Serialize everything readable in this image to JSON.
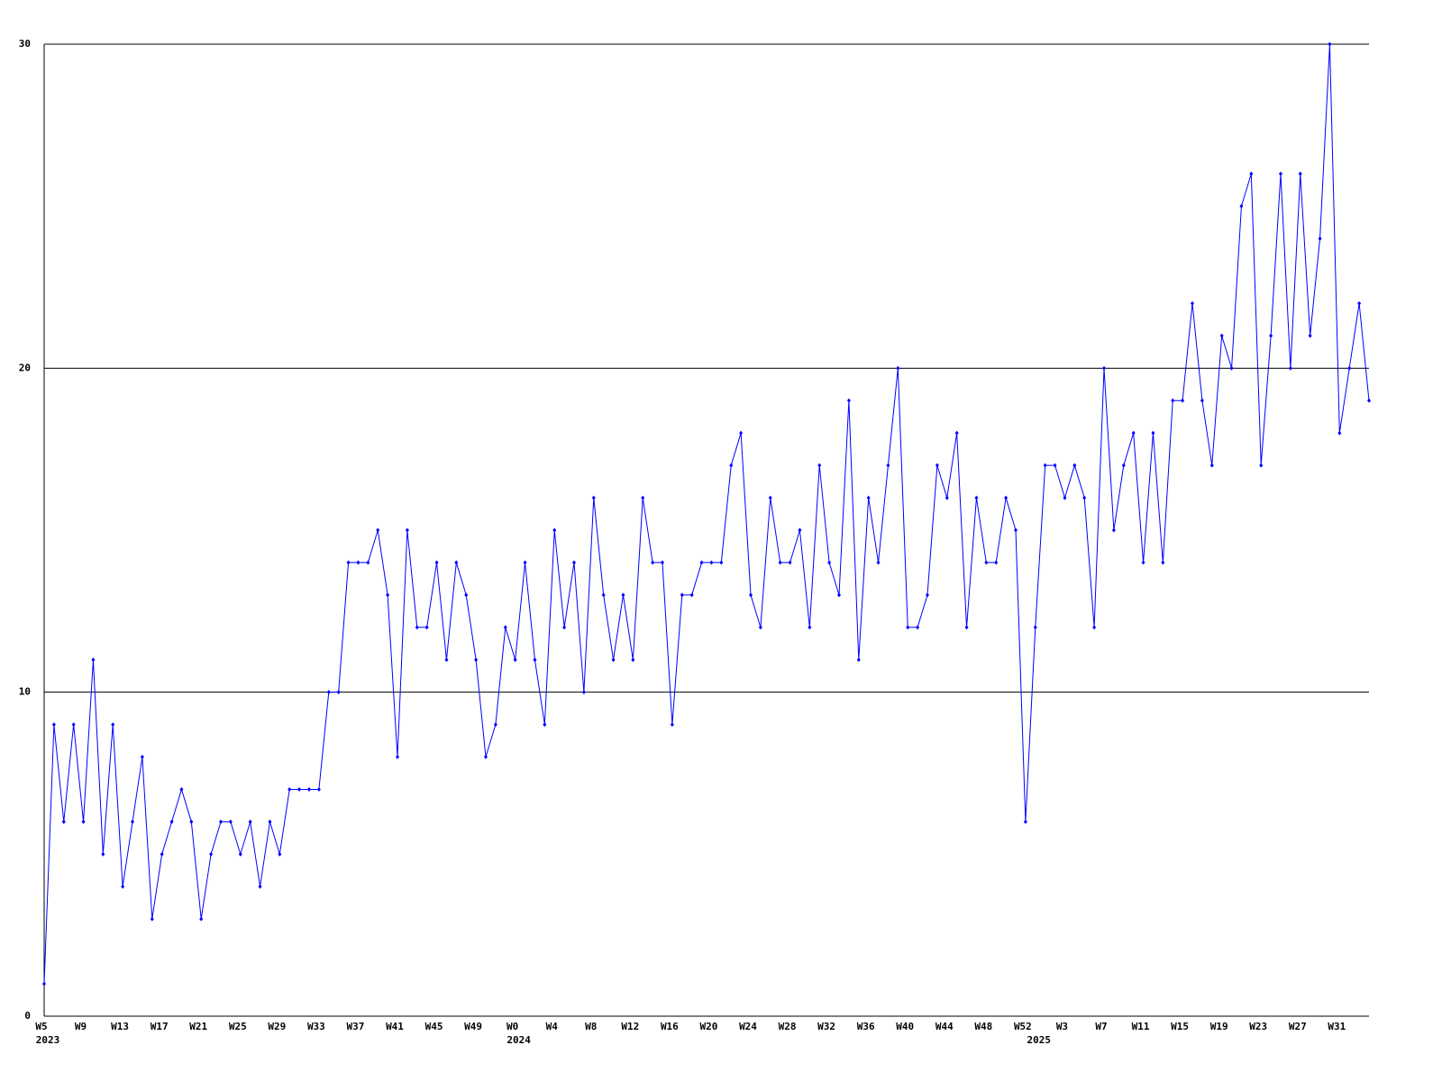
{
  "chart_data": {
    "type": "line",
    "categories": [
      "W5",
      null,
      null,
      null,
      "W9",
      null,
      null,
      null,
      "W13",
      null,
      null,
      null,
      "W17",
      null,
      null,
      null,
      "W21",
      null,
      null,
      null,
      "W25",
      null,
      null,
      null,
      "W29",
      null,
      null,
      null,
      "W33",
      null,
      null,
      null,
      "W37",
      null,
      null,
      null,
      "W41",
      null,
      null,
      null,
      "W45",
      null,
      null,
      null,
      "W49",
      null,
      null,
      null,
      "W0",
      null,
      null,
      null,
      "W4",
      null,
      null,
      null,
      "W8",
      null,
      null,
      null,
      "W12",
      null,
      null,
      null,
      "W16",
      null,
      null,
      null,
      "W20",
      null,
      null,
      null,
      "W24",
      null,
      null,
      null,
      "W28",
      null,
      null,
      null,
      "W32",
      null,
      null,
      null,
      "W36",
      null,
      null,
      null,
      "W40",
      null,
      null,
      null,
      "W44",
      null,
      null,
      null,
      "W48",
      null,
      null,
      null,
      "W52",
      null,
      null,
      null,
      "W3",
      null,
      null,
      null,
      "W7",
      null,
      null,
      null,
      "W11",
      null,
      null,
      null,
      "W15",
      null,
      null,
      null,
      "W19",
      null,
      null,
      null,
      "W23",
      null,
      null,
      null,
      "W27",
      null,
      null,
      null,
      "W31",
      null,
      null,
      null
    ],
    "x_groups": [
      {
        "label": "2023",
        "start": 0
      },
      {
        "label": "2024",
        "start": 48
      },
      {
        "label": "2025",
        "start": 101
      }
    ],
    "series": [
      {
        "color": "#0000ff",
        "values": [
          1,
          9,
          6,
          9,
          6,
          11,
          5,
          9,
          4,
          6,
          8,
          3,
          5,
          6,
          7,
          6,
          3,
          5,
          6,
          6,
          5,
          6,
          4,
          6,
          5,
          7,
          7,
          7,
          7,
          10,
          10,
          14,
          14,
          14,
          15,
          13,
          8,
          15,
          12,
          12,
          14,
          11,
          14,
          13,
          11,
          8,
          9,
          12,
          11,
          14,
          11,
          9,
          15,
          12,
          14,
          10,
          16,
          13,
          11,
          13,
          11,
          16,
          14,
          14,
          9,
          13,
          13,
          14,
          14,
          14,
          17,
          18,
          13,
          12,
          16,
          14,
          14,
          15,
          12,
          17,
          14,
          13,
          19,
          11,
          16,
          14,
          17,
          20,
          12,
          12,
          13,
          17,
          16,
          18,
          12,
          16,
          14,
          14,
          16,
          15,
          6,
          12,
          17,
          17,
          16,
          17,
          16,
          12,
          20,
          15,
          17,
          18,
          14,
          18,
          14,
          19,
          19,
          22,
          19,
          17,
          21,
          20,
          25,
          26,
          17,
          21,
          26,
          20,
          26,
          21,
          24,
          30,
          18,
          20,
          22,
          19
        ]
      }
    ],
    "ylim": [
      0,
      30
    ],
    "yticks": [
      0,
      10,
      20,
      30
    ],
    "grid": true
  }
}
